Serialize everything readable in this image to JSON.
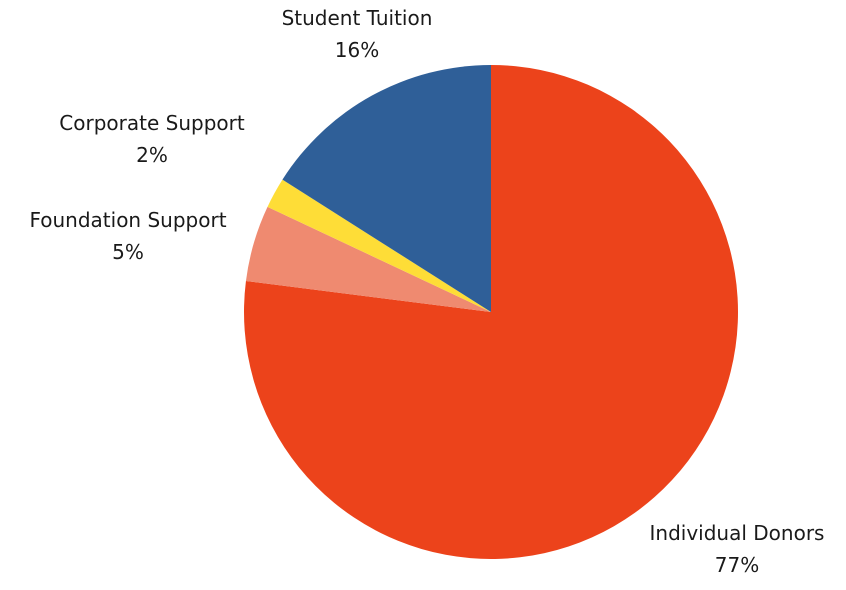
{
  "chart_data": {
    "type": "pie",
    "title": "",
    "start_angle_deg": 0,
    "direction": "clockwise",
    "slices": [
      {
        "label": "Individual Donors",
        "value": 77,
        "display": "77%",
        "color": "#ec431b"
      },
      {
        "label": "Foundation Support",
        "value": 5,
        "display": "5%",
        "color": "#ef8a70"
      },
      {
        "label": "Corporate Support",
        "value": 2,
        "display": "2%",
        "color": "#fedd37"
      },
      {
        "label": "Student Tuition",
        "value": 16,
        "display": "16%",
        "color": "#2f5f98"
      }
    ],
    "legend": "none",
    "data_labels": "outside"
  }
}
